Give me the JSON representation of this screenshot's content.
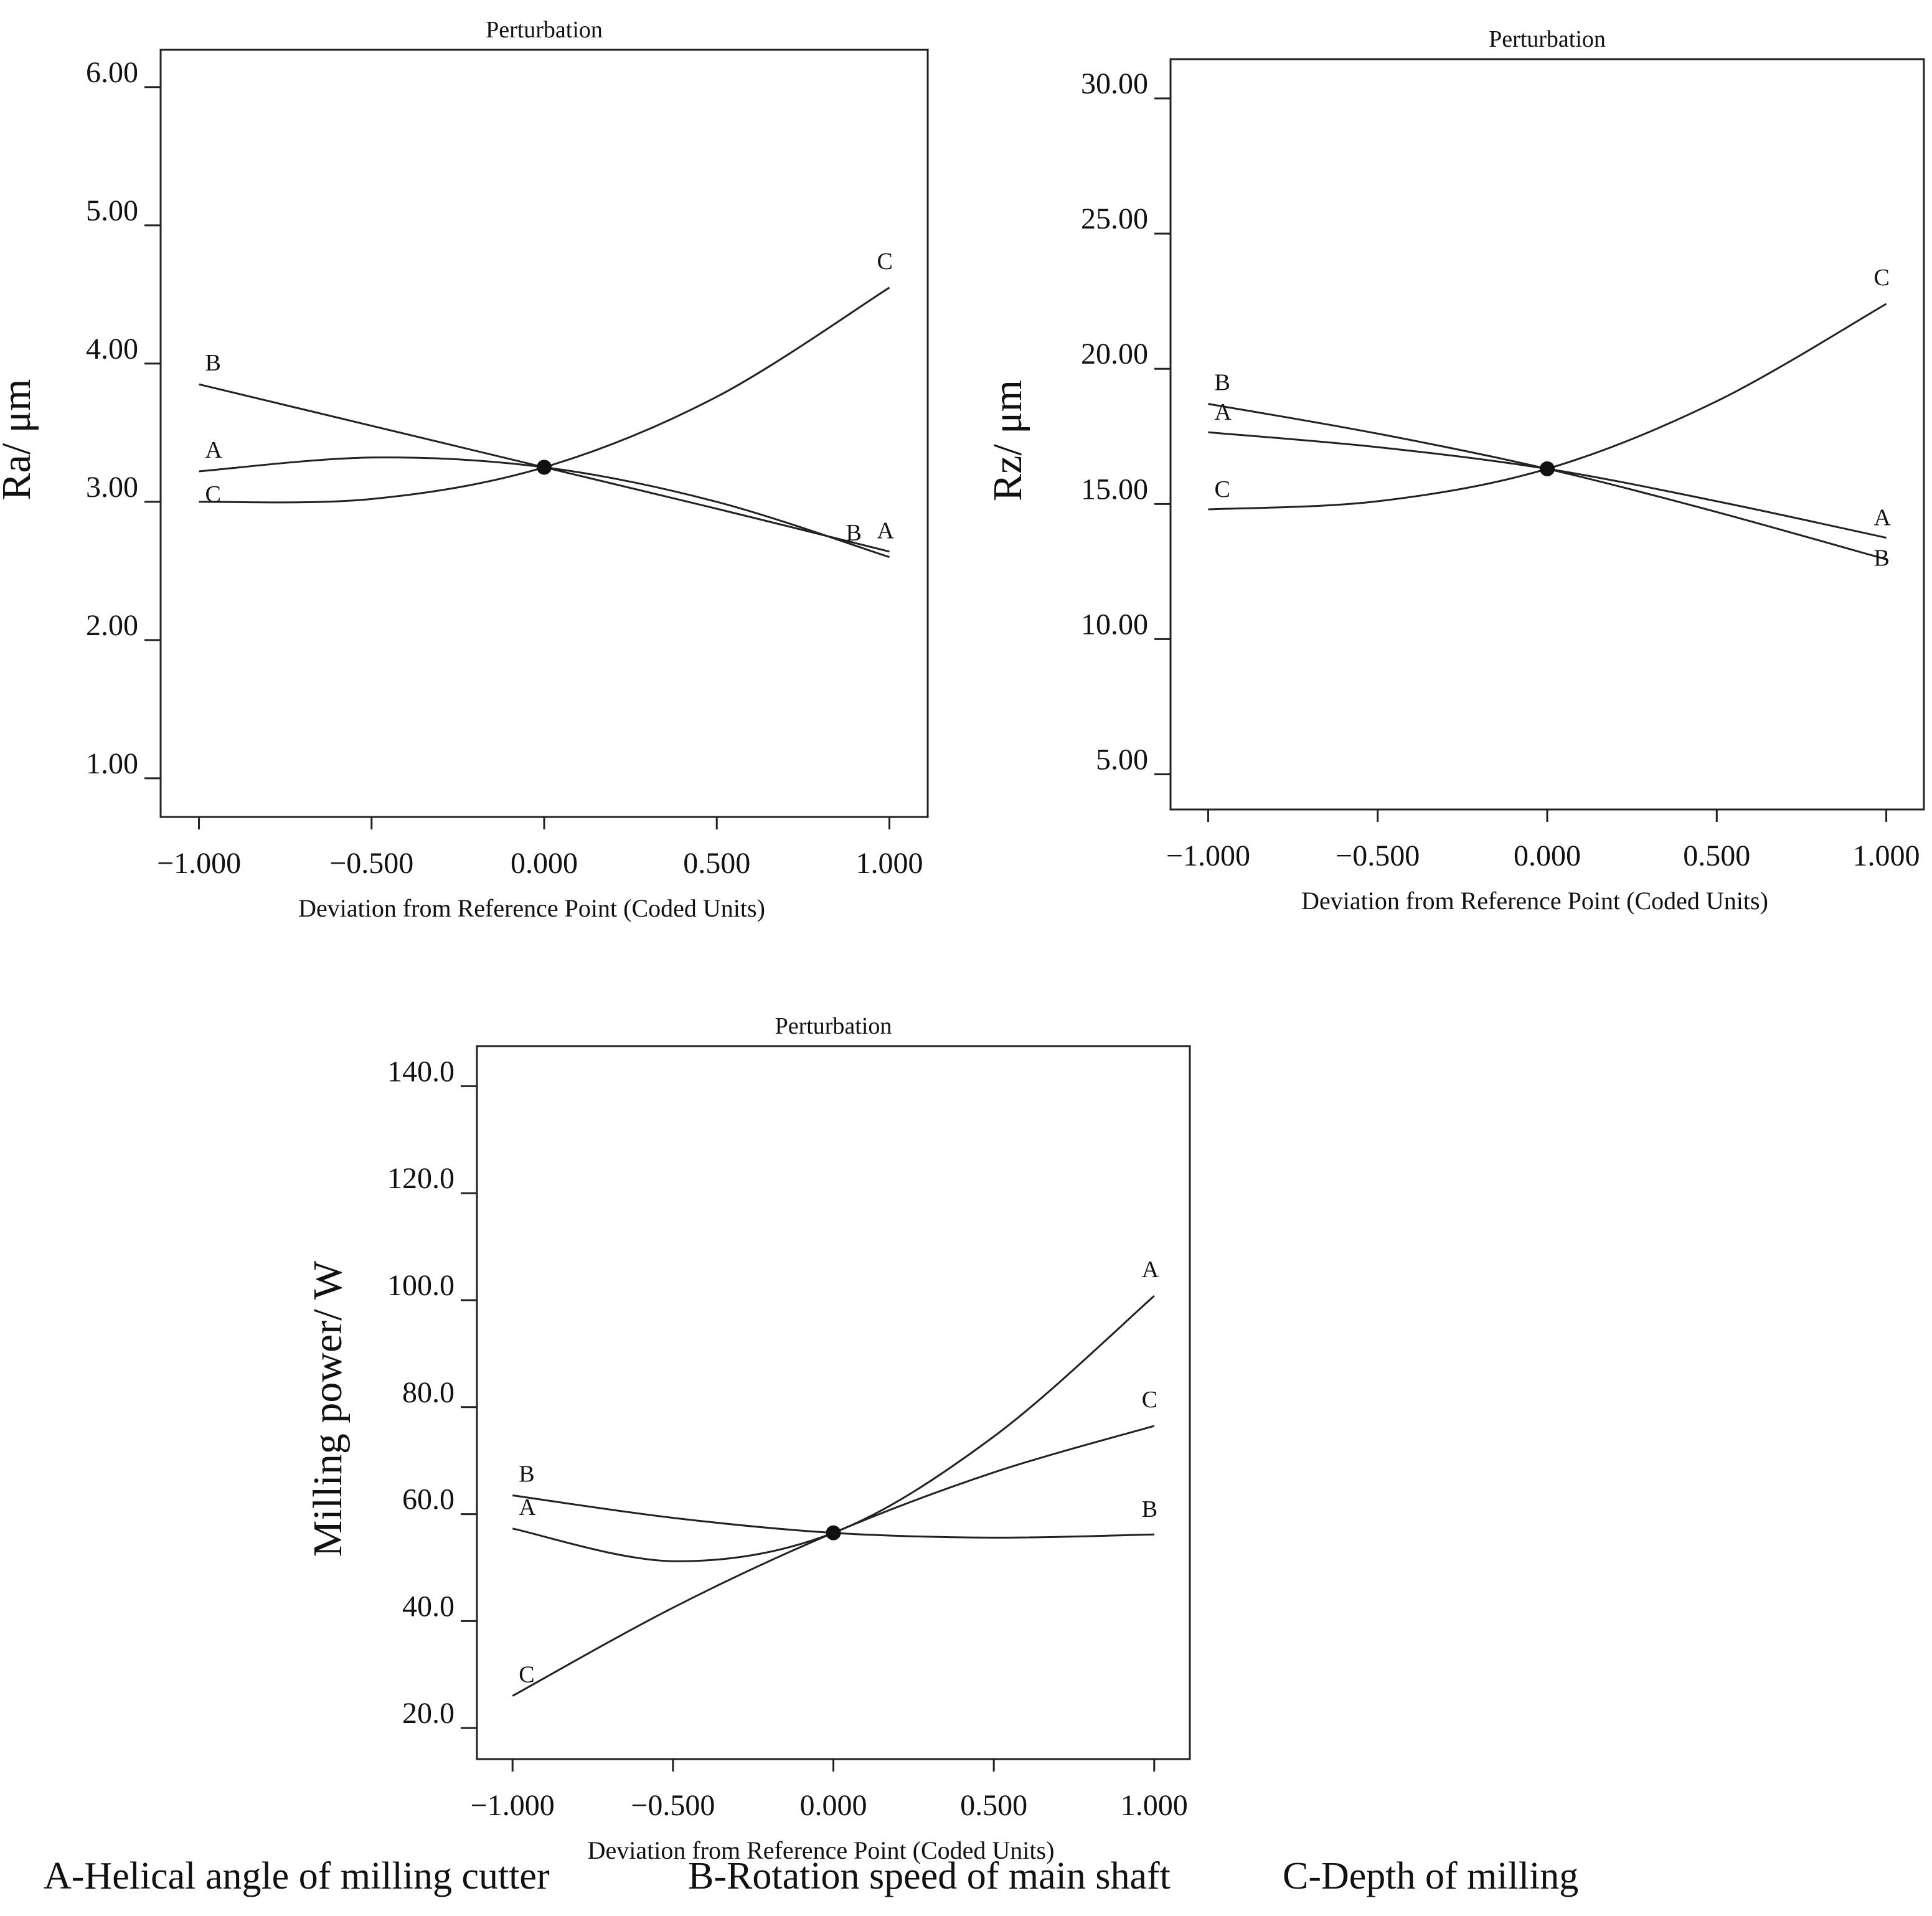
{
  "figure": {
    "legend": {
      "a": "A-Helical angle of milling cutter",
      "b": "B-Rotation speed of main shaft",
      "c": "C-Depth of milling"
    }
  },
  "chart_data": [
    {
      "id": "ra",
      "type": "line",
      "title": "Perturbation",
      "xlabel": "Deviation from Reference Point (Coded Units)",
      "ylabel": "Ra/ μm",
      "xlim": [
        -1.111,
        1.111
      ],
      "ylim": [
        0.72,
        6.27
      ],
      "xticks": [
        -1.0,
        -0.5,
        0.0,
        0.5,
        1.0
      ],
      "xtick_labels": [
        "−1.000",
        "−0.500",
        "0.000",
        "0.500",
        "1.000"
      ],
      "yticks": [
        1,
        2,
        3,
        4,
        5,
        6
      ],
      "ytick_labels": [
        "1.00",
        "2.00",
        "3.00",
        "4.00",
        "5.00",
        "6.00"
      ],
      "reference_point": {
        "x": 0.0,
        "y": 3.25
      },
      "series": [
        {
          "name": "A",
          "x": [
            -1.0,
            -0.5,
            0.0,
            0.5,
            1.0
          ],
          "y": [
            3.22,
            3.32,
            3.25,
            3.0,
            2.6
          ]
        },
        {
          "name": "B",
          "x": [
            -1.0,
            -0.5,
            0.0,
            0.5,
            1.0
          ],
          "y": [
            3.85,
            3.55,
            3.25,
            2.95,
            2.64
          ]
        },
        {
          "name": "C",
          "x": [
            -1.0,
            -0.5,
            0.0,
            0.5,
            1.0
          ],
          "y": [
            3.0,
            3.02,
            3.25,
            3.76,
            4.55
          ]
        }
      ]
    },
    {
      "id": "rz",
      "type": "line",
      "title": "Perturbation",
      "xlabel": "Deviation from Reference Point (Coded Units)",
      "ylabel": "Rz/ μm",
      "xlim": [
        -1.111,
        1.111
      ],
      "ylim": [
        3.7,
        31.45
      ],
      "xticks": [
        -1.0,
        -0.5,
        0.0,
        0.5,
        1.0
      ],
      "xtick_labels": [
        "−1.000",
        "−0.500",
        "0.000",
        "0.500",
        "1.000"
      ],
      "yticks": [
        5,
        10,
        15,
        20,
        25,
        30
      ],
      "ytick_labels": [
        "5.00",
        "10.00",
        "15.00",
        "20.00",
        "25.00",
        "30.00"
      ],
      "reference_point": {
        "x": 0.0,
        "y": 16.3
      },
      "series": [
        {
          "name": "A",
          "x": [
            -1.0,
            -0.5,
            0.0,
            0.5,
            1.0
          ],
          "y": [
            17.65,
            17.1,
            16.3,
            15.1,
            13.75
          ]
        },
        {
          "name": "B",
          "x": [
            -1.0,
            -0.5,
            0.0,
            0.5,
            1.0
          ],
          "y": [
            18.7,
            17.6,
            16.3,
            14.7,
            12.95
          ]
        },
        {
          "name": "C",
          "x": [
            -1.0,
            -0.5,
            0.0,
            0.5,
            1.0
          ],
          "y": [
            14.8,
            15.1,
            16.3,
            18.8,
            22.4
          ]
        }
      ]
    },
    {
      "id": "power",
      "type": "line",
      "title": "Perturbation",
      "xlabel": "Deviation from Reference Point (Coded Units)",
      "ylabel": "Milling power/ W",
      "xlim": [
        -1.111,
        1.111
      ],
      "ylim": [
        14.2,
        147.5
      ],
      "xticks": [
        -1.0,
        -0.5,
        0.0,
        0.5,
        1.0
      ],
      "xtick_labels": [
        "−1.000",
        "−0.500",
        "0.000",
        "0.500",
        "1.000"
      ],
      "yticks": [
        20,
        40,
        60,
        80,
        100,
        120,
        140
      ],
      "ytick_labels": [
        "20.0",
        "40.0",
        "60.0",
        "80.0",
        "100.0",
        "120.0",
        "140.0"
      ],
      "reference_point": {
        "x": 0.0,
        "y": 56.5
      },
      "series": [
        {
          "name": "A",
          "x": [
            -1.0,
            -0.5,
            0.0,
            0.5,
            1.0
          ],
          "y": [
            57.3,
            51.2,
            56.5,
            74.5,
            100.8
          ]
        },
        {
          "name": "B",
          "x": [
            -1.0,
            -0.5,
            0.0,
            0.5,
            1.0
          ],
          "y": [
            63.5,
            59.3,
            56.5,
            55.6,
            56.2
          ]
        },
        {
          "name": "C",
          "x": [
            -1.0,
            -0.5,
            0.0,
            0.5,
            1.0
          ],
          "y": [
            26.0,
            42.5,
            56.5,
            67.8,
            76.5
          ]
        }
      ]
    }
  ]
}
